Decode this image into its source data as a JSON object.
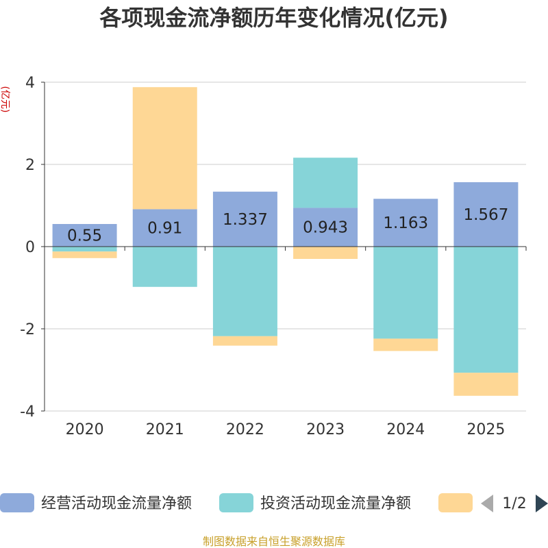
{
  "chart_data": {
    "type": "bar",
    "stacked": true,
    "title": "各项现金流净额历年变化情况(亿元)",
    "ylabel": "(亿元)",
    "categories": [
      "2020",
      "2021",
      "2022",
      "2023",
      "2024",
      "2025"
    ],
    "ylim": [
      -4,
      4
    ],
    "yticks": [
      4,
      2,
      0,
      -2,
      -4
    ],
    "series": [
      {
        "name": "经营活动现金流量净额",
        "color": "#8eaadb",
        "values": [
          0.55,
          0.91,
          1.337,
          0.943,
          1.163,
          1.567
        ],
        "labels": [
          "0.55",
          "0.91",
          "1.337",
          "0.943",
          "1.163",
          "1.567"
        ]
      },
      {
        "name": "投资活动现金流量净额",
        "color": "#86d4d8",
        "values": [
          -0.12,
          -0.98,
          -2.18,
          1.22,
          -2.24,
          -3.07
        ]
      },
      {
        "name": "",
        "color": "#fed795",
        "values": [
          -0.16,
          2.97,
          -0.23,
          -0.3,
          -0.3,
          -0.56
        ]
      }
    ],
    "legend": {
      "position": "bottom",
      "page": "1/2"
    },
    "source": "制图数据来自恒生聚源数据库"
  }
}
